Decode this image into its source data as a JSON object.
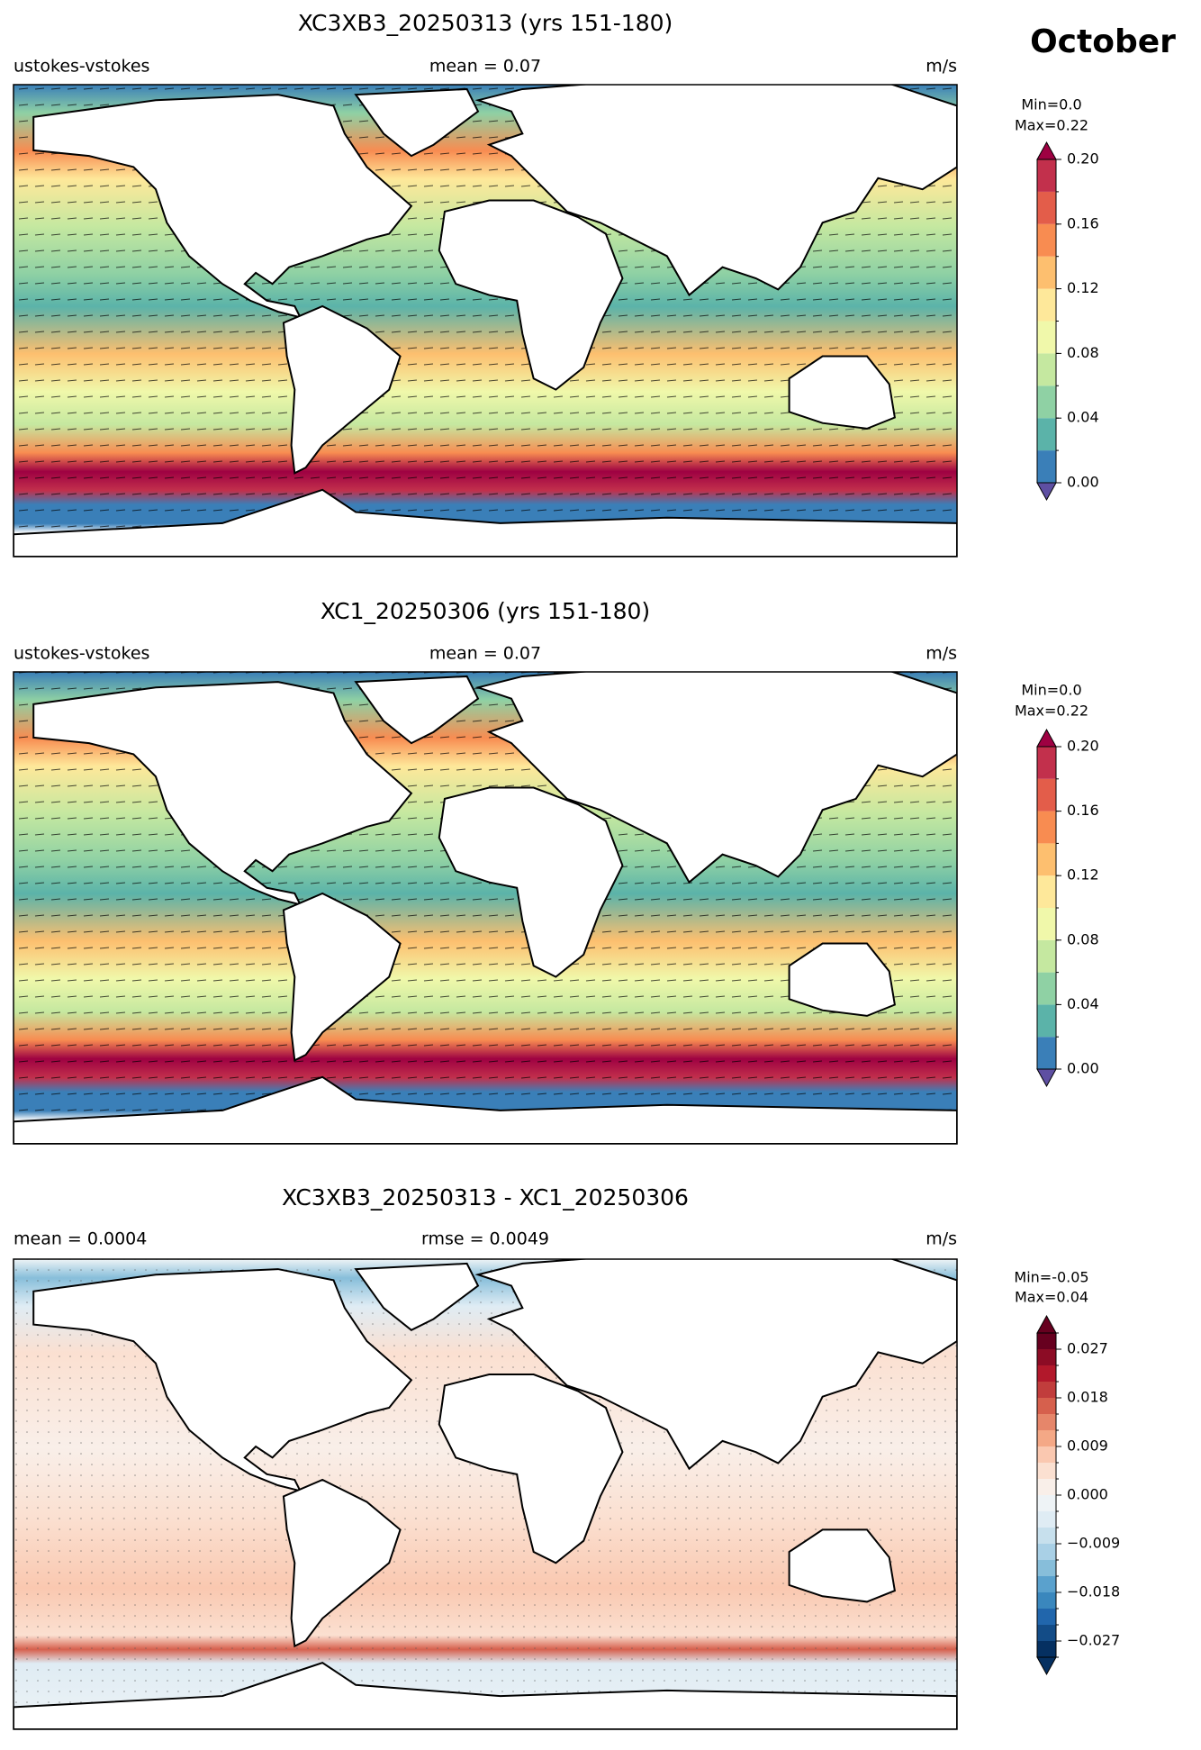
{
  "header": {
    "title": "October"
  },
  "panels": [
    {
      "title": "XC3XB3_20250313 (yrs 151-180)",
      "left_label": "ustokes-vstokes",
      "center_label": "mean = 0.07",
      "right_label": "m/s",
      "colorbar": {
        "min_label": "Min=0.0",
        "max_label": "Max=0.22",
        "levels": [
          0,
          0.02,
          0.04,
          0.06,
          0.08,
          0.1,
          0.12,
          0.14,
          0.16,
          0.18,
          0.2
        ],
        "colors": [
          "#3a7fb8",
          "#5bb3a9",
          "#8fd1a4",
          "#c5e8a0",
          "#f0f8aa",
          "#fee89a",
          "#fdbf6f",
          "#f88c51",
          "#e35d4a",
          "#c2304c"
        ],
        "under_color": "#5e4fa2",
        "over_color": "#9e0142",
        "ticks": [
          {
            "value": 0,
            "label": "0.00"
          },
          {
            "value": 0.04,
            "label": "0.04"
          },
          {
            "value": 0.08,
            "label": "0.08"
          },
          {
            "value": 0.12,
            "label": "0.12"
          },
          {
            "value": 0.16,
            "label": "0.16"
          },
          {
            "value": 0.2,
            "label": "0.20"
          }
        ]
      }
    },
    {
      "title": "XC1_20250306 (yrs 151-180)",
      "left_label": "ustokes-vstokes",
      "center_label": "mean = 0.07",
      "right_label": "m/s",
      "colorbar": {
        "min_label": "Min=0.0",
        "max_label": "Max=0.22",
        "levels": [
          0,
          0.02,
          0.04,
          0.06,
          0.08,
          0.1,
          0.12,
          0.14,
          0.16,
          0.18,
          0.2
        ],
        "colors": [
          "#3a7fb8",
          "#5bb3a9",
          "#8fd1a4",
          "#c5e8a0",
          "#f0f8aa",
          "#fee89a",
          "#fdbf6f",
          "#f88c51",
          "#e35d4a",
          "#c2304c"
        ],
        "under_color": "#5e4fa2",
        "over_color": "#9e0142",
        "ticks": [
          {
            "value": 0,
            "label": "0.00"
          },
          {
            "value": 0.04,
            "label": "0.04"
          },
          {
            "value": 0.08,
            "label": "0.08"
          },
          {
            "value": 0.12,
            "label": "0.12"
          },
          {
            "value": 0.16,
            "label": "0.16"
          },
          {
            "value": 0.2,
            "label": "0.20"
          }
        ]
      }
    },
    {
      "title": "XC3XB3_20250313 - XC1_20250306",
      "left_label": "mean = 0.0004",
      "center_label": "rmse = 0.0049",
      "right_label": "m/s",
      "colorbar": {
        "min_label": "Min=-0.05",
        "max_label": "Max=0.04",
        "levels": [
          -0.03,
          -0.027,
          -0.024,
          -0.021,
          -0.018,
          -0.015,
          -0.012,
          -0.009,
          -0.006,
          -0.003,
          0,
          0.003,
          0.006,
          0.009,
          0.012,
          0.015,
          0.018,
          0.021,
          0.024,
          0.027,
          0.03
        ],
        "colors": [
          "#053061",
          "#134c87",
          "#2166ac",
          "#3a87bd",
          "#5aa1cd",
          "#87beda",
          "#a9d0e6",
          "#c7e0ed",
          "#dfecf4",
          "#eef3f6",
          "#f9efe9",
          "#fbe0d1",
          "#fac8b0",
          "#f4a886",
          "#e6866a",
          "#d6604d",
          "#c13d3c",
          "#b2182b",
          "#8c0c25",
          "#67001f"
        ],
        "under_color": "#053061",
        "over_color": "#67001f",
        "ticks": [
          {
            "value": -0.027,
            "label": "−0.027"
          },
          {
            "value": -0.018,
            "label": "−0.018"
          },
          {
            "value": -0.009,
            "label": "−0.009"
          },
          {
            "value": 0,
            "label": "0.000"
          },
          0.009,
          0.018,
          0.027
        ]
      }
    }
  ]
}
